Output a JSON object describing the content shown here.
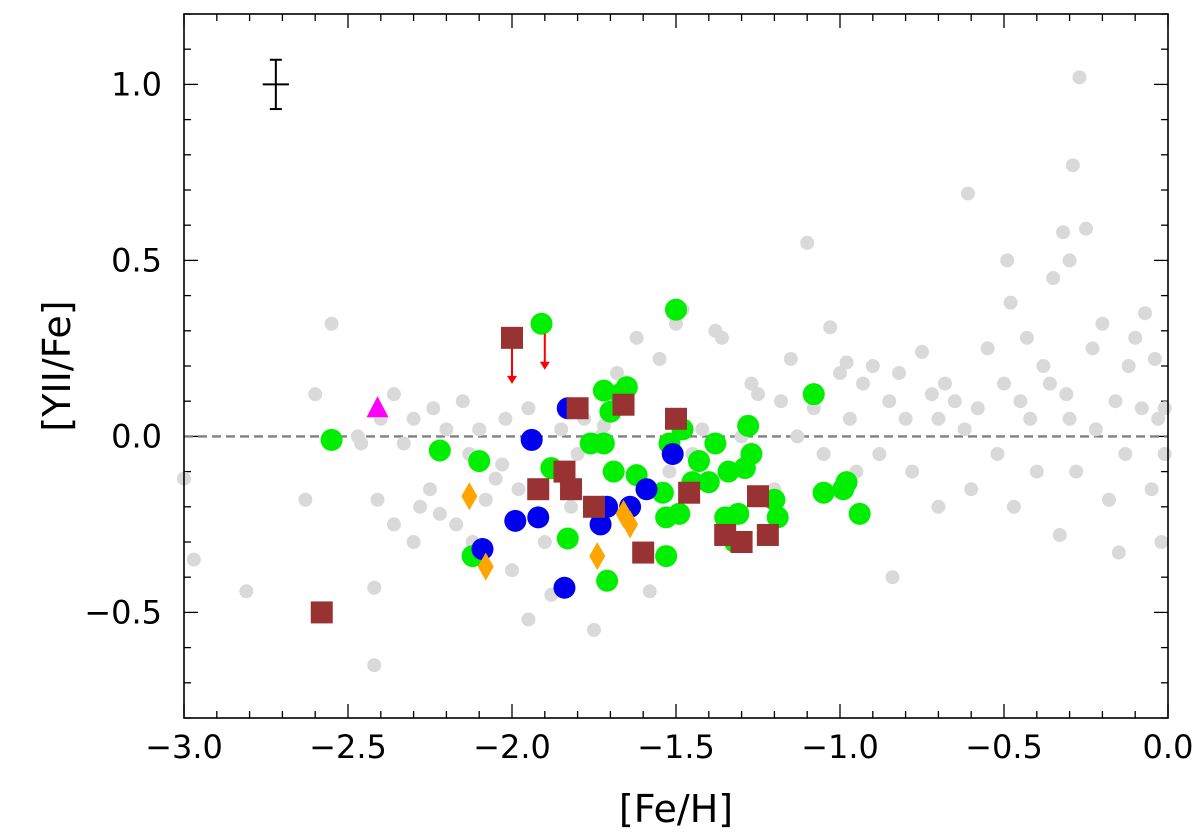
{
  "chart_data": {
    "type": "scatter",
    "title": "",
    "xlabel": "[Fe/H]",
    "ylabel": "[YII/Fe]",
    "xlim": [
      -3.0,
      0.0
    ],
    "ylim": [
      -0.8,
      1.2
    ],
    "x_ticks": [
      -3.0,
      -2.5,
      -2.0,
      -1.5,
      -1.0,
      -0.5,
      0.0
    ],
    "x_tick_labels": [
      "−3.0",
      "−2.5",
      "−2.0",
      "−1.5",
      "−1.0",
      "−0.5",
      "0.0"
    ],
    "y_ticks": [
      -0.5,
      0.0,
      0.5,
      1.0
    ],
    "y_tick_labels": [
      "−0.5",
      "0.0",
      "0.5",
      "1.0"
    ],
    "reference_line": {
      "y": 0.0,
      "style": "dashed",
      "color": "#808080"
    },
    "representative_error_bar": {
      "x": -2.72,
      "y": 1.0,
      "x_error": 0.04,
      "y_error": 0.07
    },
    "series": [
      {
        "marker": "circle-small",
        "color": "#d9d9d9",
        "x": [
          -3.0,
          -2.97,
          -2.81,
          -2.63,
          -2.6,
          -2.55,
          -2.47,
          -2.46,
          -2.42,
          -2.42,
          -2.41,
          -2.4,
          -2.36,
          -2.36,
          -2.33,
          -2.3,
          -2.3,
          -2.28,
          -2.25,
          -2.24,
          -2.22,
          -2.2,
          -2.17,
          -2.15,
          -2.13,
          -2.12,
          -2.1,
          -2.08,
          -2.05,
          -2.03,
          -2.02,
          -2.0,
          -1.98,
          -1.95,
          -1.95,
          -1.9,
          -1.88,
          -1.85,
          -1.82,
          -1.8,
          -1.78,
          -1.75,
          -1.73,
          -1.72,
          -1.7,
          -1.68,
          -1.66,
          -1.62,
          -1.58,
          -1.55,
          -1.52,
          -1.5,
          -1.48,
          -1.45,
          -1.42,
          -1.38,
          -1.36,
          -1.35,
          -1.3,
          -1.27,
          -1.25,
          -1.2,
          -1.18,
          -1.15,
          -1.13,
          -1.1,
          -1.08,
          -1.05,
          -1.03,
          -1.0,
          -0.98,
          -0.97,
          -0.95,
          -0.93,
          -0.9,
          -0.88,
          -0.85,
          -0.84,
          -0.82,
          -0.8,
          -0.78,
          -0.75,
          -0.72,
          -0.7,
          -0.7,
          -0.68,
          -0.65,
          -0.62,
          -0.61,
          -0.6,
          -0.58,
          -0.55,
          -0.52,
          -0.5,
          -0.49,
          -0.48,
          -0.47,
          -0.45,
          -0.43,
          -0.42,
          -0.4,
          -0.38,
          -0.36,
          -0.35,
          -0.33,
          -0.32,
          -0.31,
          -0.3,
          -0.3,
          -0.29,
          -0.28,
          -0.27,
          -0.25,
          -0.23,
          -0.22,
          -0.2,
          -0.18,
          -0.16,
          -0.15,
          -0.13,
          -0.12,
          -0.1,
          -0.08,
          -0.07,
          -0.05,
          -0.04,
          -0.03,
          -0.02,
          -0.01,
          -0.01
        ],
        "y": [
          -0.12,
          -0.35,
          -0.44,
          -0.18,
          0.12,
          0.32,
          0.0,
          -0.02,
          -0.65,
          -0.43,
          -0.18,
          0.05,
          -0.25,
          0.12,
          -0.02,
          -0.3,
          0.05,
          -0.2,
          -0.15,
          0.08,
          -0.22,
          0.02,
          -0.25,
          0.1,
          -0.05,
          -0.3,
          0.02,
          -0.18,
          -0.12,
          -0.08,
          0.05,
          -0.38,
          -0.15,
          -0.52,
          0.08,
          -0.3,
          -0.45,
          0.02,
          -0.2,
          -0.05,
          0.05,
          -0.55,
          0.0,
          0.03,
          -0.2,
          0.18,
          0.1,
          0.28,
          -0.44,
          0.22,
          -0.1,
          0.32,
          0.36,
          -0.05,
          0.02,
          0.3,
          0.28,
          -0.25,
          0.0,
          0.15,
          0.12,
          -0.15,
          0.1,
          0.22,
          0.0,
          0.55,
          0.08,
          -0.05,
          0.31,
          0.18,
          0.21,
          0.05,
          -0.1,
          0.15,
          0.2,
          -0.05,
          0.1,
          -0.4,
          0.18,
          0.05,
          -0.1,
          0.24,
          0.12,
          -0.2,
          0.05,
          0.15,
          0.1,
          0.02,
          0.69,
          -0.15,
          0.08,
          0.25,
          -0.05,
          0.15,
          0.5,
          0.38,
          -0.2,
          0.1,
          0.28,
          0.05,
          -0.1,
          0.2,
          0.15,
          0.45,
          -0.28,
          0.58,
          0.12,
          0.5,
          0.05,
          0.77,
          -0.1,
          1.02,
          0.59,
          0.25,
          0.02,
          0.32,
          -0.18,
          0.1,
          -0.33,
          -0.05,
          0.2,
          0.28,
          0.08,
          0.35,
          -0.15,
          0.22,
          0.05,
          -0.3,
          -0.05,
          0.08
        ]
      },
      {
        "marker": "circle",
        "color": "#00ee00",
        "x": [
          -2.55,
          -2.22,
          -2.12,
          -2.1,
          -1.91,
          -1.88,
          -1.83,
          -1.76,
          -1.72,
          -1.72,
          -1.7,
          -1.69,
          -1.67,
          -1.65,
          -1.62,
          -1.54,
          -1.53,
          -1.52,
          -1.5,
          -1.49,
          -1.48,
          -1.45,
          -1.43,
          -1.4,
          -1.38,
          -1.35,
          -1.34,
          -1.32,
          -1.31,
          -1.29,
          -1.28,
          -1.27,
          -1.2,
          -1.19,
          -1.08,
          -1.05,
          -0.99,
          -0.98,
          -0.94,
          -1.71,
          -1.53
        ],
        "y": [
          -0.01,
          -0.04,
          -0.34,
          -0.07,
          0.32,
          -0.09,
          -0.29,
          -0.02,
          0.13,
          -0.02,
          0.07,
          -0.1,
          0.12,
          0.14,
          -0.11,
          -0.16,
          -0.23,
          -0.02,
          0.36,
          -0.22,
          0.02,
          -0.13,
          -0.07,
          -0.13,
          -0.02,
          -0.23,
          -0.1,
          -0.3,
          -0.22,
          -0.09,
          0.03,
          -0.05,
          -0.18,
          -0.23,
          0.12,
          -0.16,
          -0.15,
          -0.13,
          -0.22,
          -0.41,
          -0.34
        ]
      },
      {
        "marker": "circle",
        "color": "#0000ee",
        "x": [
          -2.09,
          -1.99,
          -1.94,
          -1.92,
          -1.83,
          -1.84,
          -1.73,
          -1.71,
          -1.64,
          -1.59,
          -1.51
        ],
        "y": [
          -0.32,
          -0.24,
          -0.01,
          -0.23,
          0.08,
          -0.43,
          -0.25,
          -0.2,
          -0.2,
          -0.15,
          -0.05
        ]
      },
      {
        "marker": "square",
        "color": "#993333",
        "x": [
          -2.58,
          -2.0,
          -1.92,
          -1.84,
          -1.82,
          -1.8,
          -1.75,
          -1.66,
          -1.6,
          -1.5,
          -1.46,
          -1.35,
          -1.3,
          -1.25,
          -1.22
        ],
        "y": [
          -0.5,
          0.28,
          -0.15,
          -0.1,
          -0.15,
          0.08,
          -0.2,
          0.09,
          -0.33,
          0.05,
          -0.16,
          -0.28,
          -0.3,
          -0.17,
          -0.28
        ]
      },
      {
        "marker": "diamond",
        "color": "#ffa500",
        "x": [
          -2.13,
          -2.08,
          -1.74,
          -1.66,
          -1.64
        ],
        "y": [
          -0.17,
          -0.37,
          -0.34,
          -0.22,
          -0.25
        ]
      },
      {
        "marker": "triangle",
        "color": "#ff00ff",
        "x": [
          -2.41
        ],
        "y": [
          0.08
        ]
      }
    ],
    "upper_limit_arrows": {
      "color": "#ff0000",
      "points": [
        {
          "x": -2.0,
          "y": 0.28
        },
        {
          "x": -1.9,
          "y": 0.32
        }
      ]
    }
  }
}
